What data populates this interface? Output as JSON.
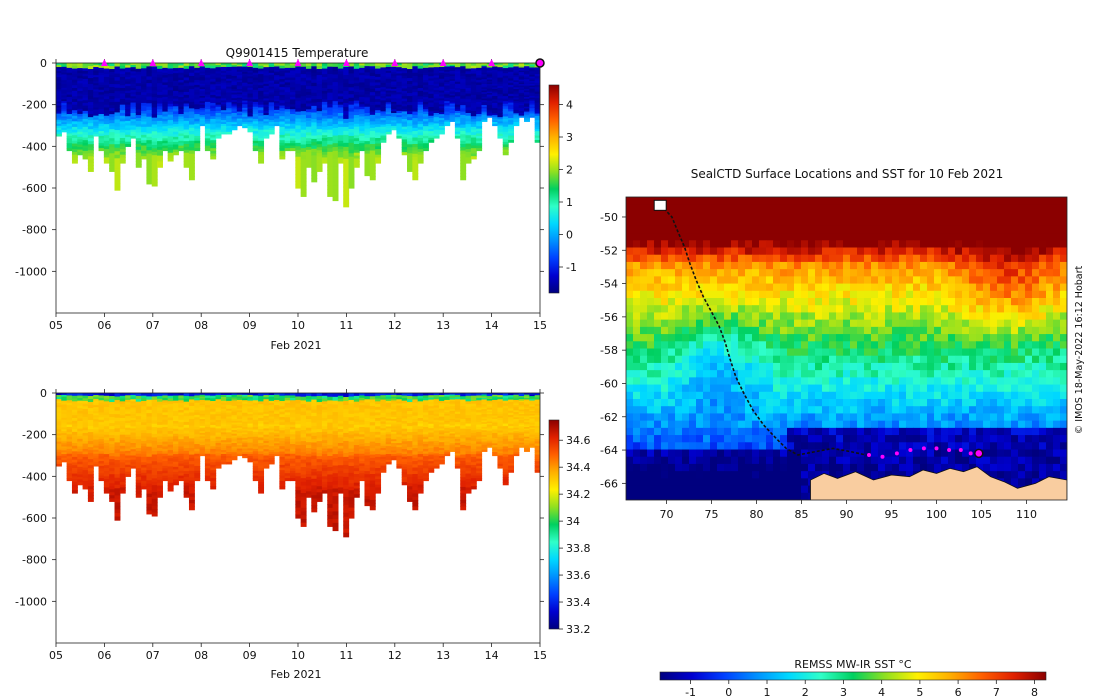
{
  "colors": {
    "jet": [
      "#00007f",
      "#0000d0",
      "#0040ff",
      "#0090ff",
      "#00d8ff",
      "#30ffc8",
      "#00d060",
      "#90e020",
      "#fff000",
      "#ffb000",
      "#ff6000",
      "#e02000",
      "#8b0000"
    ],
    "land": "#f9cda0",
    "track": "#111111",
    "marker": "#ff00ff"
  },
  "chart_data": [
    {
      "id": "temperature",
      "type": "heatmap",
      "title": "Q9901415  Temperature",
      "xlabel": "Feb 2021",
      "ylabel": "",
      "x_tick_labels": [
        "05",
        "06",
        "07",
        "08",
        "09",
        "10",
        "11",
        "12",
        "13",
        "14",
        "15"
      ],
      "x_days": [
        5,
        6,
        7,
        8,
        9,
        10,
        11,
        12,
        13,
        14,
        15
      ],
      "xlim": [
        5,
        15
      ],
      "y_ticks": [
        0,
        -200,
        -400,
        -600,
        -800,
        -1000
      ],
      "ylim": [
        -1200,
        0
      ],
      "colorbar": {
        "min": -1.8,
        "max": 4.6,
        "ticks": [
          -1,
          0,
          1,
          2,
          3,
          4
        ]
      },
      "surface_markers_days": [
        6,
        7,
        8,
        9,
        10,
        11,
        12,
        13,
        14
      ],
      "last_profile_day": 15,
      "profile_depths_m": [
        350,
        330,
        420,
        480,
        440,
        460,
        520,
        350,
        420,
        480,
        520,
        610,
        480,
        400,
        360,
        500,
        460,
        580,
        590,
        500,
        420,
        470,
        440,
        420,
        500,
        560,
        420,
        300,
        420,
        460,
        360,
        340,
        340,
        320,
        300,
        310,
        330,
        420,
        480,
        360,
        340,
        300,
        460,
        420,
        420,
        600,
        640,
        500,
        570,
        520,
        480,
        640,
        660,
        480,
        690,
        600,
        500,
        420,
        540,
        560,
        480,
        380,
        340,
        320,
        360,
        440,
        520,
        560,
        480,
        420,
        380,
        360,
        340,
        300,
        280,
        360,
        560,
        480,
        460,
        420,
        280,
        260,
        300,
        360,
        440,
        380,
        300,
        260,
        280,
        260,
        380
      ]
    },
    {
      "id": "salinity",
      "type": "heatmap",
      "title": "",
      "xlabel": "Feb 2021",
      "ylabel": "",
      "x_tick_labels": [
        "05",
        "06",
        "07",
        "08",
        "09",
        "10",
        "11",
        "12",
        "13",
        "14",
        "15"
      ],
      "x_days": [
        5,
        6,
        7,
        8,
        9,
        10,
        11,
        12,
        13,
        14,
        15
      ],
      "xlim": [
        5,
        15
      ],
      "y_ticks": [
        0,
        -200,
        -400,
        -600,
        -800,
        -1000
      ],
      "ylim": [
        -1200,
        0
      ],
      "colorbar": {
        "min": 33.2,
        "max": 34.75,
        "ticks": [
          33.2,
          33.4,
          33.6,
          33.8,
          34,
          34.2,
          34.4,
          34.6
        ],
        "tick_labels": [
          "33.2",
          "33.4",
          "33.6",
          "33.8",
          "34",
          "34.2",
          "34.4",
          "34.6"
        ]
      }
    },
    {
      "id": "sst_map",
      "type": "heatmap",
      "title": "SealCTD Surface Locations and SST for 10 Feb 2021",
      "xlabel": "",
      "ylabel": "",
      "lon_ticks": [
        70,
        75,
        80,
        85,
        90,
        95,
        100,
        105,
        110
      ],
      "lat_ticks": [
        -50,
        -52,
        -54,
        -56,
        -58,
        -60,
        -62,
        -64,
        -66
      ],
      "xlim": [
        65.5,
        114.5
      ],
      "ylim": [
        -67,
        -48.8
      ],
      "colorbar": {
        "label": "REMSS MW-IR SST °C",
        "min": -1.8,
        "max": 8.3,
        "ticks": [
          -1,
          0,
          1,
          2,
          3,
          4,
          5,
          6,
          7,
          8
        ]
      },
      "track_lonlat": [
        [
          69.3,
          -49.3
        ],
        [
          69.9,
          -49.6
        ],
        [
          70.6,
          -50.0
        ],
        [
          71.2,
          -50.8
        ],
        [
          72.0,
          -51.8
        ],
        [
          72.6,
          -52.8
        ],
        [
          73.3,
          -53.8
        ],
        [
          74.1,
          -54.8
        ],
        [
          75.0,
          -55.7
        ],
        [
          75.8,
          -56.5
        ],
        [
          76.5,
          -57.5
        ],
        [
          77.1,
          -58.6
        ],
        [
          77.7,
          -59.6
        ],
        [
          78.6,
          -60.6
        ],
        [
          79.6,
          -61.6
        ],
        [
          80.8,
          -62.5
        ],
        [
          82.0,
          -63.2
        ],
        [
          83.3,
          -63.9
        ],
        [
          84.6,
          -64.3
        ],
        [
          86.5,
          -64.1
        ],
        [
          88.5,
          -63.9
        ],
        [
          90.5,
          -64.1
        ],
        [
          92.2,
          -64.3
        ]
      ],
      "recent_positions_lonlat": [
        [
          92.5,
          -64.3
        ],
        [
          94.0,
          -64.4
        ],
        [
          95.6,
          -64.2
        ],
        [
          97.1,
          -64.0
        ],
        [
          98.6,
          -63.9
        ],
        [
          100.0,
          -63.9
        ],
        [
          101.4,
          -64.0
        ],
        [
          102.7,
          -64.0
        ],
        [
          103.8,
          -64.2
        ]
      ],
      "current_position_lonlat": [
        104.7,
        -64.2
      ],
      "start_position_lonlat": [
        69.3,
        -49.3
      ]
    }
  ],
  "credit": "© IMOS 18-May-2022 16:12 Hobart"
}
